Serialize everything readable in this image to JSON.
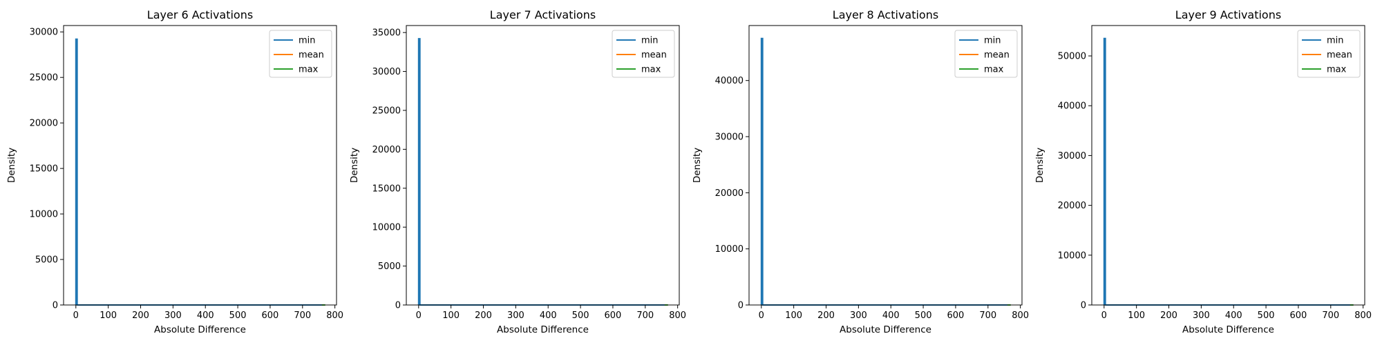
{
  "chart_data": [
    {
      "type": "line",
      "title": "Layer 6 Activations",
      "xlabel": "Absolute Difference",
      "ylabel": "Density",
      "xlim": [
        -38,
        805
      ],
      "ylim": [
        0,
        30700
      ],
      "xticks": [
        0,
        100,
        200,
        300,
        400,
        500,
        600,
        700,
        800
      ],
      "yticks": [
        0,
        5000,
        10000,
        15000,
        20000,
        25000,
        30000
      ],
      "legend_position": "upper right",
      "grid": false,
      "series": [
        {
          "name": "min",
          "color": "#1f77b4",
          "x": [
            0,
            0,
            4,
            4,
            760,
            770
          ],
          "y": [
            0,
            29200,
            29200,
            0,
            0,
            0
          ]
        },
        {
          "name": "mean",
          "color": "#ff7f0e",
          "x": [
            760,
            770
          ],
          "y": [
            0,
            0
          ]
        },
        {
          "name": "max",
          "color": "#2ca02c",
          "x": [
            760,
            770
          ],
          "y": [
            0,
            0
          ]
        }
      ]
    },
    {
      "type": "line",
      "title": "Layer 7 Activations",
      "xlabel": "Absolute Difference",
      "ylabel": "Density",
      "xlim": [
        -38,
        805
      ],
      "ylim": [
        0,
        35900
      ],
      "xticks": [
        0,
        100,
        200,
        300,
        400,
        500,
        600,
        700,
        800
      ],
      "yticks": [
        0,
        5000,
        10000,
        15000,
        20000,
        25000,
        30000,
        35000
      ],
      "legend_position": "upper right",
      "grid": false,
      "series": [
        {
          "name": "min",
          "color": "#1f77b4",
          "x": [
            0,
            0,
            4,
            4,
            760,
            770
          ],
          "y": [
            0,
            34200,
            34200,
            0,
            0,
            0
          ]
        },
        {
          "name": "mean",
          "color": "#ff7f0e",
          "x": [
            760,
            770
          ],
          "y": [
            0,
            0
          ]
        },
        {
          "name": "max",
          "color": "#2ca02c",
          "x": [
            760,
            770
          ],
          "y": [
            0,
            0
          ]
        }
      ]
    },
    {
      "type": "line",
      "title": "Layer 8 Activations",
      "xlabel": "Absolute Difference",
      "ylabel": "Density",
      "xlim": [
        -38,
        805
      ],
      "ylim": [
        0,
        49800
      ],
      "xticks": [
        0,
        100,
        200,
        300,
        400,
        500,
        600,
        700,
        800
      ],
      "yticks": [
        0,
        10000,
        20000,
        30000,
        40000
      ],
      "legend_position": "upper right",
      "grid": false,
      "series": [
        {
          "name": "min",
          "color": "#1f77b4",
          "x": [
            0,
            0,
            4,
            4,
            760,
            770
          ],
          "y": [
            0,
            47500,
            47500,
            0,
            0,
            0
          ]
        },
        {
          "name": "mean",
          "color": "#ff7f0e",
          "x": [
            760,
            770
          ],
          "y": [
            0,
            0
          ]
        },
        {
          "name": "max",
          "color": "#2ca02c",
          "x": [
            760,
            770
          ],
          "y": [
            0,
            0
          ]
        }
      ]
    },
    {
      "type": "line",
      "title": "Layer 9 Activations",
      "xlabel": "Absolute Difference",
      "ylabel": "Density",
      "xlim": [
        -38,
        805
      ],
      "ylim": [
        0,
        56100
      ],
      "xticks": [
        0,
        100,
        200,
        300,
        400,
        500,
        600,
        700,
        800
      ],
      "yticks": [
        0,
        10000,
        20000,
        30000,
        40000,
        50000
      ],
      "legend_position": "upper right",
      "grid": false,
      "series": [
        {
          "name": "min",
          "color": "#1f77b4",
          "x": [
            0,
            0,
            4,
            4,
            760,
            770
          ],
          "y": [
            0,
            53500,
            53500,
            0,
            0,
            0
          ]
        },
        {
          "name": "mean",
          "color": "#ff7f0e",
          "x": [
            760,
            770
          ],
          "y": [
            0,
            0
          ]
        },
        {
          "name": "max",
          "color": "#2ca02c",
          "x": [
            760,
            770
          ],
          "y": [
            0,
            0
          ]
        }
      ]
    }
  ]
}
